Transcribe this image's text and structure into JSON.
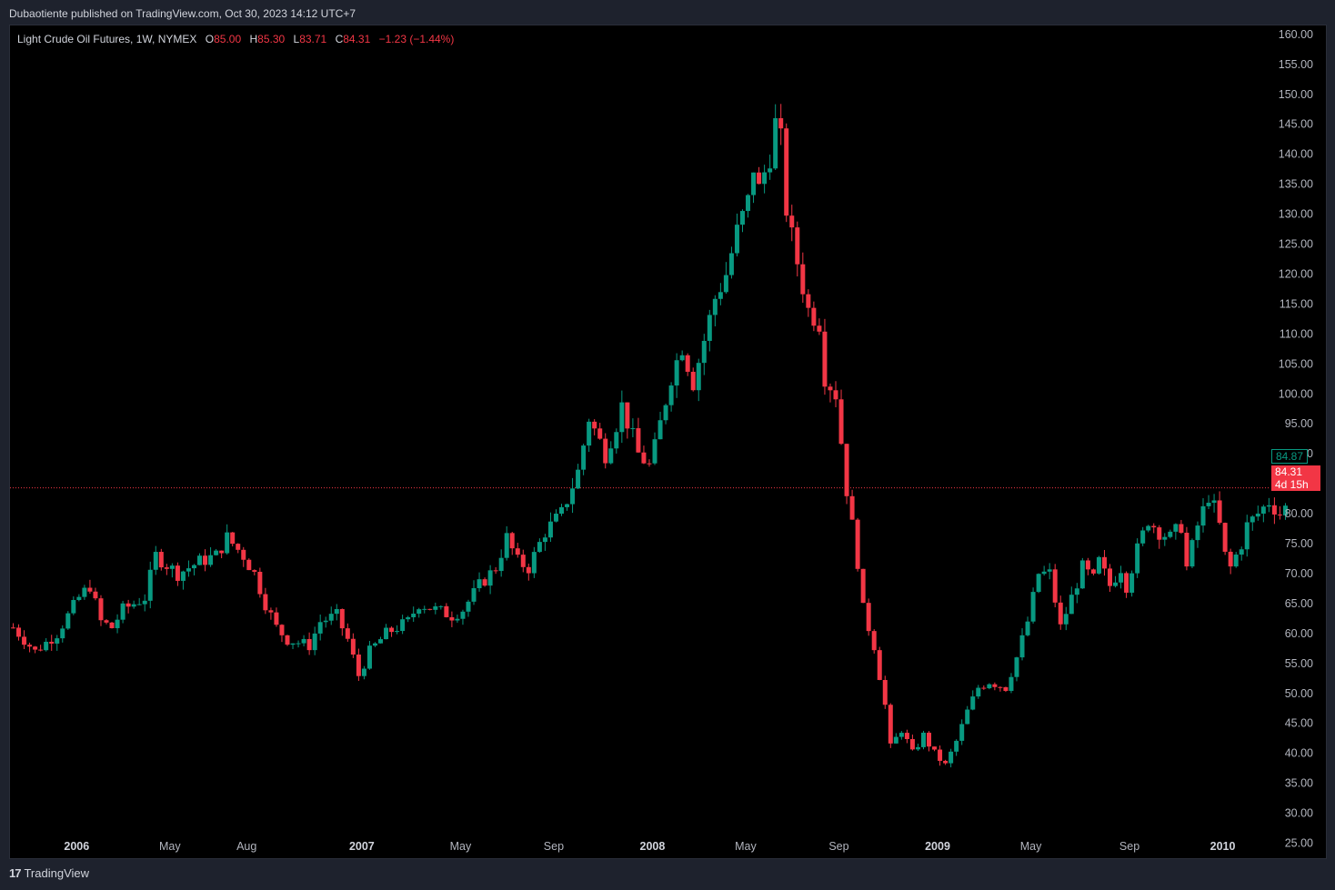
{
  "header": {
    "published": "Dubaotiente published on TradingView.com, Oct 30, 2023 14:12 UTC+7"
  },
  "legend": {
    "symbol": "Light Crude Oil Futures, 1W, NYMEX",
    "o_label": "O",
    "o_value": "85.00",
    "h_label": "H",
    "h_value": "85.30",
    "l_label": "L",
    "l_value": "83.71",
    "c_label": "C",
    "c_value": "84.31",
    "change": "−1.23 (−1.44%)"
  },
  "price_tags": {
    "prev": "84.87",
    "last": "84.31",
    "countdown": "4d 15h"
  },
  "footer": {
    "brand": "TradingView",
    "logo_glyph": "17"
  },
  "colors": {
    "up": "#089981",
    "down": "#f23645",
    "bg": "#000000",
    "frame": "#1e222d"
  },
  "chart_data": {
    "type": "candlestick",
    "interval": "1W",
    "y_axis": {
      "range": [
        22.5,
        161.5
      ],
      "ticks": [
        "160.00",
        "155.00",
        "150.00",
        "145.00",
        "140.00",
        "135.00",
        "130.00",
        "125.00",
        "120.00",
        "115.00",
        "110.00",
        "105.00",
        "100.00",
        "95.00",
        "90.00",
        "85.00",
        "80.00",
        "75.00",
        "70.00",
        "65.00",
        "60.00",
        "55.00",
        "50.00",
        "45.00",
        "40.00",
        "35.00",
        "30.00",
        "25.00"
      ]
    },
    "x_axis": {
      "labels": [
        {
          "text": "2006",
          "bold": true,
          "index": 10
        },
        {
          "text": "May",
          "bold": false,
          "index": 27
        },
        {
          "text": "Aug",
          "bold": false,
          "index": 41
        },
        {
          "text": "2007",
          "bold": true,
          "index": 62
        },
        {
          "text": "May",
          "bold": false,
          "index": 80
        },
        {
          "text": "Sep",
          "bold": false,
          "index": 97
        },
        {
          "text": "2008",
          "bold": true,
          "index": 115
        },
        {
          "text": "May",
          "bold": false,
          "index": 132
        },
        {
          "text": "Sep",
          "bold": false,
          "index": 149
        },
        {
          "text": "2009",
          "bold": true,
          "index": 167
        },
        {
          "text": "May",
          "bold": false,
          "index": 184
        },
        {
          "text": "Sep",
          "bold": false,
          "index": 202
        },
        {
          "text": "2010",
          "bold": true,
          "index": 219
        }
      ]
    },
    "last_price": 84.31,
    "keypoints": [
      [
        0,
        61
      ],
      [
        4,
        57
      ],
      [
        8,
        60
      ],
      [
        12,
        66
      ],
      [
        14,
        68
      ],
      [
        16,
        62
      ],
      [
        18,
        61
      ],
      [
        20,
        64
      ],
      [
        24,
        66
      ],
      [
        26,
        73
      ],
      [
        30,
        70
      ],
      [
        34,
        72
      ],
      [
        37,
        73
      ],
      [
        39,
        76
      ],
      [
        42,
        73
      ],
      [
        44,
        70
      ],
      [
        46,
        65
      ],
      [
        48,
        61
      ],
      [
        50,
        59
      ],
      [
        54,
        58
      ],
      [
        56,
        62
      ],
      [
        59,
        63
      ],
      [
        61,
        59
      ],
      [
        63,
        53
      ],
      [
        65,
        57
      ],
      [
        68,
        60
      ],
      [
        72,
        62
      ],
      [
        74,
        65
      ],
      [
        77,
        64
      ],
      [
        80,
        63
      ],
      [
        82,
        64
      ],
      [
        85,
        68
      ],
      [
        88,
        71
      ],
      [
        90,
        76
      ],
      [
        92,
        72
      ],
      [
        94,
        71
      ],
      [
        97,
        77
      ],
      [
        100,
        80
      ],
      [
        103,
        87
      ],
      [
        105,
        96
      ],
      [
        108,
        90
      ],
      [
        110,
        95
      ],
      [
        111,
        98
      ],
      [
        114,
        90
      ],
      [
        116,
        88
      ],
      [
        117,
        91
      ],
      [
        120,
        103
      ],
      [
        122,
        108
      ],
      [
        124,
        102
      ],
      [
        126,
        109
      ],
      [
        128,
        116
      ],
      [
        130,
        120
      ],
      [
        132,
        127
      ],
      [
        134,
        132
      ],
      [
        135,
        138
      ],
      [
        136,
        134
      ],
      [
        138,
        140
      ],
      [
        139,
        145
      ],
      [
        140,
        142
      ],
      [
        141,
        131
      ],
      [
        142,
        126
      ],
      [
        144,
        118
      ],
      [
        145,
        114
      ],
      [
        147,
        112
      ],
      [
        148,
        103
      ],
      [
        150,
        100
      ],
      [
        151,
        92
      ],
      [
        152,
        84
      ],
      [
        154,
        72
      ],
      [
        155,
        64
      ],
      [
        157,
        58
      ],
      [
        159,
        48
      ],
      [
        160,
        41
      ],
      [
        162,
        44
      ],
      [
        164,
        40
      ],
      [
        166,
        43
      ],
      [
        168,
        40
      ],
      [
        170,
        38
      ],
      [
        172,
        42
      ],
      [
        174,
        47
      ],
      [
        176,
        51
      ],
      [
        178,
        52
      ],
      [
        181,
        51
      ],
      [
        183,
        56
      ],
      [
        185,
        62
      ],
      [
        187,
        70
      ],
      [
        189,
        70
      ],
      [
        191,
        61
      ],
      [
        193,
        66
      ],
      [
        195,
        71
      ],
      [
        197,
        69
      ],
      [
        198,
        72
      ],
      [
        200,
        68
      ],
      [
        202,
        71
      ],
      [
        203,
        68
      ],
      [
        205,
        74
      ],
      [
        207,
        79
      ],
      [
        209,
        77
      ],
      [
        211,
        76
      ],
      [
        213,
        78
      ],
      [
        214,
        71
      ],
      [
        216,
        78
      ],
      [
        218,
        83
      ],
      [
        219,
        81
      ],
      [
        220,
        78
      ],
      [
        221,
        73
      ],
      [
        222,
        71
      ],
      [
        224,
        75
      ],
      [
        225,
        78
      ],
      [
        227,
        80
      ],
      [
        229,
        82
      ],
      [
        231,
        80
      ],
      [
        232,
        81
      ]
    ]
  }
}
